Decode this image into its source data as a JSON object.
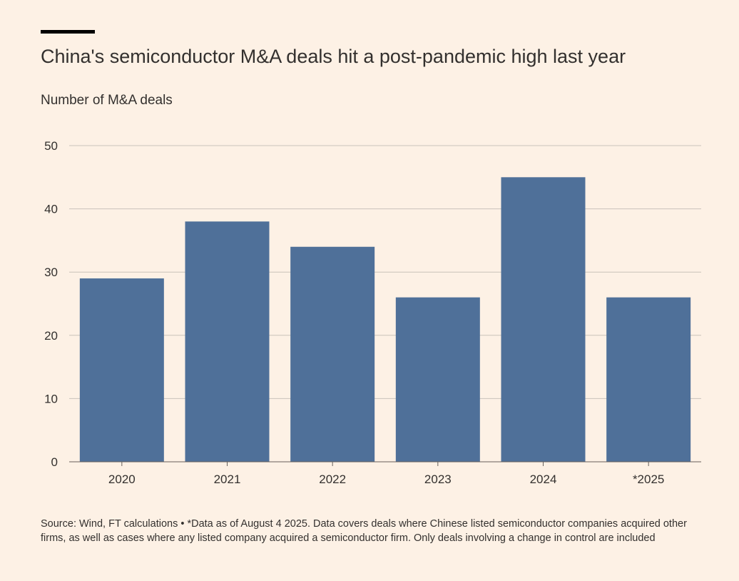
{
  "header": {
    "title": "China's semiconductor M&A deals hit a post-pandemic high last year",
    "subtitle": "Number of M&A deals"
  },
  "footnote": "Source: Wind, FT calculations • *Data as of August 4 2025. Data covers deals where Chinese listed semiconductor companies acquired other firms, as well as cases where any listed company acquired a semiconductor firm. Only deals involving a change in control are included",
  "colors": {
    "bar": "#4F7099",
    "background": "#FDF1E5",
    "gridline": "#C9C2BA",
    "axis": "#66605C"
  },
  "chart_data": {
    "type": "bar",
    "title": "China's semiconductor M&A deals hit a post-pandemic high last year",
    "xlabel": "",
    "ylabel": "Number of M&A deals",
    "categories": [
      "2020",
      "2021",
      "2022",
      "2023",
      "2024",
      "*2025"
    ],
    "values": [
      29,
      38,
      34,
      26,
      45,
      26
    ],
    "ylim": [
      0,
      50
    ],
    "yticks": [
      0,
      10,
      20,
      30,
      40,
      50
    ],
    "grid": true
  }
}
